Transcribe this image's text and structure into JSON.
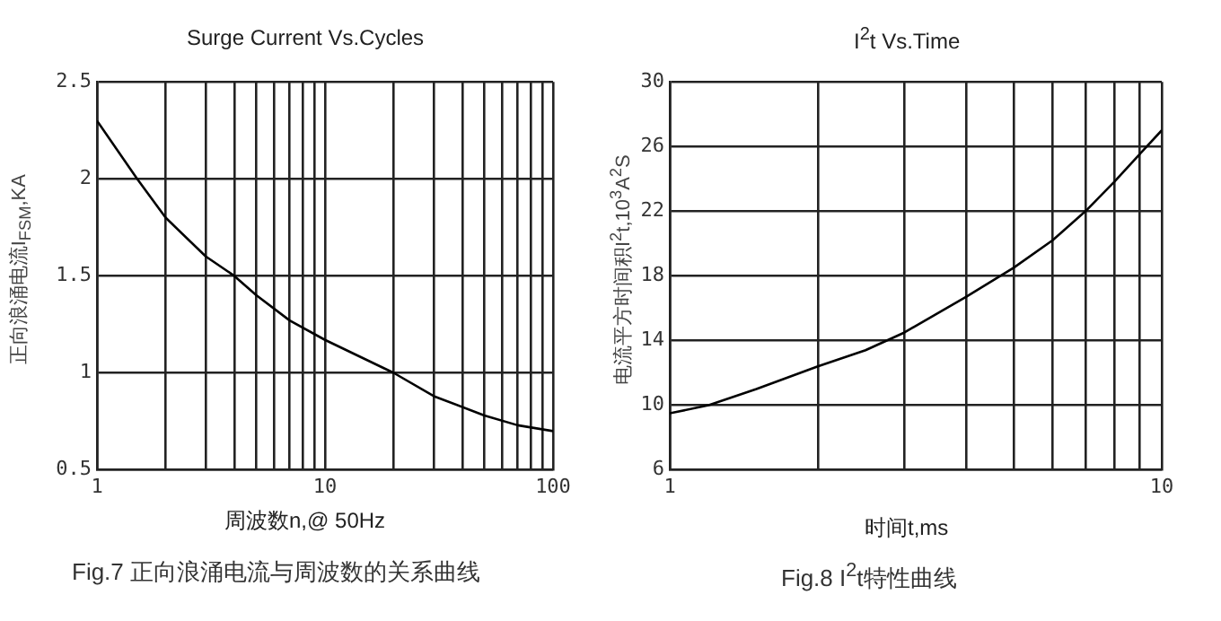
{
  "chart_data": [
    {
      "type": "line",
      "title": "Surge Current Vs.Cycles",
      "xlabel": "周波数n,@ 50Hz",
      "ylabel": "正向浪涌电流I$_{FSM}$,KA",
      "log": "x",
      "x": [
        1,
        1.5,
        2,
        3,
        4,
        5,
        7,
        10,
        20,
        30,
        50,
        70,
        100
      ],
      "series": [
        {
          "color": "#000000",
          "values": [
            2.3,
            2.0,
            1.8,
            1.6,
            1.5,
            1.4,
            1.27,
            1.17,
            1.0,
            0.88,
            0.78,
            0.73,
            0.7
          ]
        }
      ],
      "xlim": [
        1,
        100
      ],
      "xticks": [
        1,
        {
          "value": 2,
          "label": null
        },
        {
          "value": 3,
          "label": null
        },
        {
          "value": 4,
          "label": null
        },
        {
          "value": 5,
          "label": null
        },
        {
          "value": 6,
          "label": null
        },
        {
          "value": 7,
          "label": null
        },
        {
          "value": 8,
          "label": null
        },
        {
          "value": 9,
          "label": null
        },
        10,
        {
          "value": 20,
          "label": null
        },
        {
          "value": 30,
          "label": null
        },
        {
          "value": 40,
          "label": null
        },
        {
          "value": 50,
          "label": null
        },
        {
          "value": 60,
          "label": null
        },
        {
          "value": 70,
          "label": null
        },
        {
          "value": 80,
          "label": null
        },
        {
          "value": 90,
          "label": null
        },
        100
      ],
      "ylim": [
        0.5,
        2.5
      ],
      "yticks": [
        0.5,
        1,
        1.5,
        2,
        2.5
      ],
      "grid": true,
      "legend": false,
      "marker": "none",
      "line_style": "solid",
      "annotations": [
        "Fig.7 正向浪涌电流与周波数的关系曲线"
      ]
    },
    {
      "type": "line",
      "title": "I$^{2}$t  Vs.Time",
      "xlabel": "时间t,ms",
      "ylabel": "电流平方时间积I$^{2}$t,10$^{3}$A$^{2}$S",
      "log": "x",
      "x": [
        1,
        1.2,
        1.5,
        2,
        2.5,
        3,
        4,
        5,
        6,
        7,
        8,
        9,
        10
      ],
      "series": [
        {
          "color": "#000000",
          "values": [
            9.5,
            10,
            11,
            12.4,
            13.4,
            14.5,
            16.7,
            18.5,
            20.2,
            22,
            23.8,
            25.5,
            27
          ]
        }
      ],
      "xlim": [
        1,
        10
      ],
      "xticks": [
        1,
        {
          "value": 2,
          "label": null
        },
        {
          "value": 3,
          "label": null
        },
        {
          "value": 4,
          "label": null
        },
        {
          "value": 5,
          "label": null
        },
        {
          "value": 6,
          "label": null
        },
        {
          "value": 7,
          "label": null
        },
        {
          "value": 8,
          "label": null
        },
        {
          "value": 9,
          "label": null
        },
        10
      ],
      "ylim": [
        6,
        30
      ],
      "yticks": [
        6,
        10,
        14,
        18,
        22,
        26,
        30
      ],
      "grid": true,
      "legend": false,
      "marker": "none",
      "line_style": "solid",
      "annotations": [
        "Fig.8 I$^{2}$t特性曲线"
      ]
    }
  ]
}
